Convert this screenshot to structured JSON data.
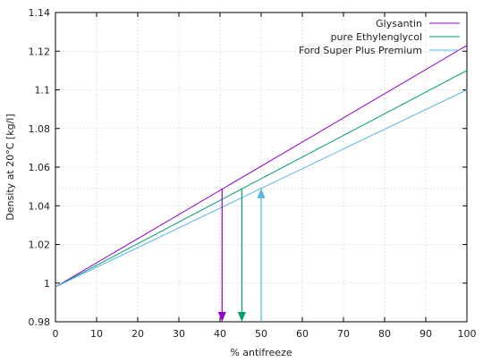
{
  "chart_data": {
    "type": "line",
    "title": "",
    "xlabel": "% antifreeze",
    "ylabel": "Density at 20°C [kg/l]",
    "xlim": [
      0,
      100
    ],
    "ylim": [
      0.98,
      1.14
    ],
    "x_ticks": [
      0,
      10,
      20,
      30,
      40,
      50,
      60,
      70,
      80,
      90,
      100
    ],
    "y_ticks": [
      0.98,
      1,
      1.02,
      1.04,
      1.06,
      1.08,
      1.1,
      1.12,
      1.14
    ],
    "x_tick_labels": [
      "0",
      "10",
      "20",
      "30",
      "40",
      "50",
      "60",
      "70",
      "80",
      "90",
      "100"
    ],
    "y_tick_labels": [
      "0.98",
      "1",
      "1.02",
      "1.04",
      "1.06",
      "1.08",
      "1.1",
      "1.12",
      "1.14"
    ],
    "grid": true,
    "legend_position": "top-right",
    "series": [
      {
        "name": "Glysantin",
        "color": "#9400d3",
        "x": [
          0,
          100
        ],
        "y": [
          0.998,
          1.123
        ]
      },
      {
        "name": "pure Ethylenglycol",
        "color": "#009e73",
        "x": [
          0,
          100
        ],
        "y": [
          0.998,
          1.11
        ]
      },
      {
        "name": "Ford Super Plus Premium",
        "color": "#56b4e9",
        "x": [
          0,
          100
        ],
        "y": [
          0.998,
          1.1
        ]
      }
    ],
    "annotations": {
      "reference_density": 1.049,
      "arrows": [
        {
          "x": 40.5,
          "from_y": 1.049,
          "to_y": 0.98,
          "direction": "down",
          "color": "#9400d3"
        },
        {
          "x": 45.3,
          "from_y": 1.049,
          "to_y": 0.98,
          "direction": "down",
          "color": "#009e73"
        },
        {
          "x": 50,
          "from_y": 0.98,
          "to_y": 1.049,
          "direction": "up",
          "color": "#56b4e9"
        }
      ]
    }
  }
}
